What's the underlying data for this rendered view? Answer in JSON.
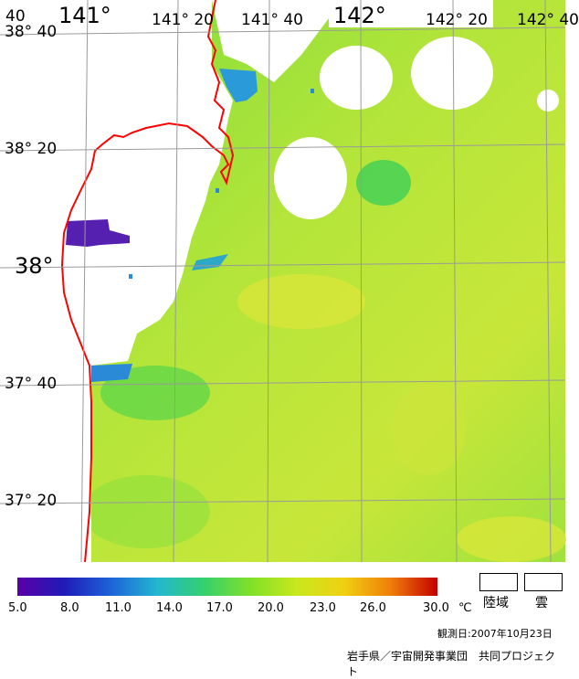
{
  "map": {
    "lon_labels": [
      "141°",
      "141° 20",
      "141° 40",
      "142°",
      "142° 20",
      "142° 40"
    ],
    "lat_labels": [
      "38° 40",
      "38° 20",
      "38°",
      "37° 40",
      "37° 20"
    ],
    "corner_label": "40",
    "colors": {
      "sea_base": "#a6e43a",
      "sea_warm": "#d7e63a",
      "sea_cool": "#6fdc44",
      "coast_cold": "#2a9ad8",
      "cold_spot": "#5520b0",
      "land": "#ffffff",
      "coastline": "#ff0000",
      "grid": "#9a9a9a"
    }
  },
  "legend": {
    "colorbar": {
      "stops": [
        "#5a00a6",
        "#1f1bb8",
        "#1d63d8",
        "#23b7d0",
        "#35d06c",
        "#80e028",
        "#c9e81d",
        "#f0d012",
        "#ef7e08",
        "#c40000"
      ],
      "ticks": [
        "5.0",
        "8.0",
        "11.0",
        "14.0",
        "17.0",
        "20.0",
        "23.0",
        "26.0",
        "30.0"
      ],
      "unit": "℃"
    },
    "land_label": "陸域",
    "cloud_label": "雲",
    "observation_date": "観測日:2007年10月23日",
    "credit": "岩手県／宇宙開発事業団　共同プロジェクト"
  }
}
